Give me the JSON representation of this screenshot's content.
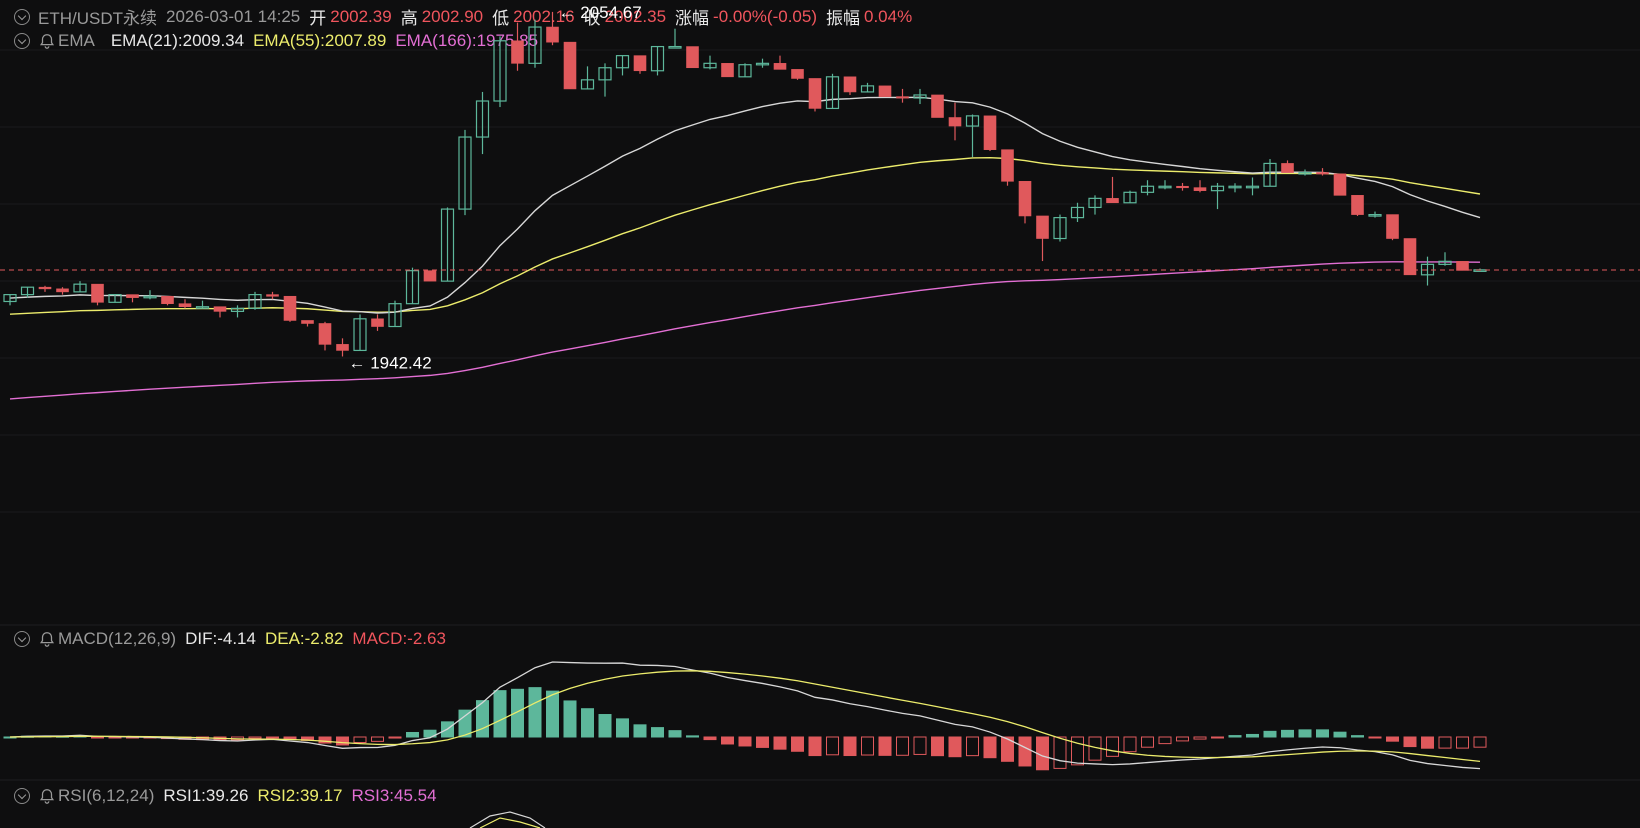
{
  "header": {
    "symbol": "ETH/USDT永续",
    "datetime": "2026-03-01 14:25",
    "open_label": "开",
    "open_value": "2002.39",
    "high_label": "高",
    "high_value": "2002.90",
    "low_label": "低",
    "low_value": "2002.16",
    "close_label": "收",
    "close_value": "2002.35",
    "change_label": "涨幅",
    "change_value": "-0.00%(-0.05)",
    "amp_label": "振幅",
    "amp_value": "0.04%"
  },
  "ema": {
    "name": "EMA",
    "ema21": "EMA(21):2009.34",
    "ema55": "EMA(55):2007.89",
    "ema166": "EMA(166):1975.85"
  },
  "macd": {
    "name": "MACD(12,26,9)",
    "dif": "DIF:-4.14",
    "dea": "DEA:-2.82",
    "macd": "MACD:-2.63"
  },
  "rsi": {
    "name": "RSI(6,12,24)",
    "rsi1": "RSI1:39.26",
    "rsi2": "RSI2:39.17",
    "rsi3": "RSI3:45.54"
  },
  "annotations": {
    "high_mark": "← 2054.67",
    "low_mark": "← 1942.42"
  },
  "colors": {
    "up": "#5db79b",
    "down": "#e0595c",
    "ema21": "#d7d7d7",
    "ema55": "#ecec6c",
    "ema166": "#e36fd4",
    "background": "#0e0e0f"
  },
  "chart_data": {
    "type": "candlestick",
    "ohlc": [
      [
        1990.9,
        1993.4,
        1989.5,
        1993.4
      ],
      [
        1993.4,
        1996.1,
        1992.3,
        1996.1
      ],
      [
        1996.1,
        1996.6,
        1994.4,
        1995.5
      ],
      [
        1995.5,
        1996.1,
        1993.4,
        1994.4
      ],
      [
        1994.4,
        1998.3,
        1994.4,
        1997.2
      ],
      [
        1997.2,
        1997.2,
        1989.5,
        1990.6
      ],
      [
        1990.6,
        1993.4,
        1990.6,
        1993.4
      ],
      [
        1993.4,
        1993.4,
        1990.6,
        1992.3
      ],
      [
        1992.3,
        1995.0,
        1991.7,
        1992.8
      ],
      [
        1992.8,
        1992.8,
        1989.5,
        1990.1
      ],
      [
        1990.1,
        1991.7,
        1988.4,
        1989.0
      ],
      [
        1989.0,
        1991.2,
        1988.4,
        1989.0
      ],
      [
        1989.0,
        1989.0,
        1985.1,
        1987.3
      ],
      [
        1987.3,
        1989.5,
        1985.1,
        1988.4
      ],
      [
        1988.4,
        1994.4,
        1987.9,
        1993.4
      ],
      [
        1993.4,
        1994.4,
        1991.7,
        1992.8
      ],
      [
        1992.8,
        1992.8,
        1983.5,
        1984.0
      ],
      [
        1984.0,
        1984.0,
        1981.8,
        1982.9
      ],
      [
        1982.9,
        1983.5,
        1973.1,
        1975.3
      ],
      [
        1975.3,
        1977.5,
        1970.9,
        1973.1
      ],
      [
        1973.1,
        1986.2,
        1973.1,
        1984.6
      ],
      [
        1984.6,
        1986.2,
        1980.2,
        1981.8
      ],
      [
        1981.8,
        1991.2,
        1981.8,
        1990.1
      ],
      [
        1990.1,
        2003.2,
        1990.1,
        2002.1
      ],
      [
        2002.1,
        2002.1,
        1998.3,
        1998.3
      ],
      [
        1998.3,
        2025.1,
        1998.3,
        2024.5
      ],
      [
        2024.5,
        2053.3,
        2022.3,
        2050.7
      ],
      [
        2050.7,
        2067.1,
        2044.5,
        2063.8
      ],
      [
        2063.8,
        2087.3,
        2061.6,
        2085.7
      ],
      [
        2085.7,
        2092.3,
        2074.8,
        2077.5
      ],
      [
        2077.5,
        2093.4,
        2075.9,
        2090.7
      ],
      [
        2090.7,
        2096.2,
        2084.1,
        2085.2
      ],
      [
        2085.2,
        2085.2,
        2068.2,
        2068.2
      ],
      [
        2068.2,
        2076.4,
        2068.2,
        2071.5
      ],
      [
        2071.5,
        2077.5,
        2065.4,
        2075.9
      ],
      [
        2075.9,
        2080.3,
        2073.1,
        2080.3
      ],
      [
        2080.3,
        2080.3,
        2073.7,
        2074.8
      ],
      [
        2074.8,
        2083.6,
        2073.1,
        2083.6
      ],
      [
        2083.6,
        2090.1,
        2083.6,
        2083.6
      ],
      [
        2083.6,
        2083.6,
        2075.9,
        2075.9
      ],
      [
        2075.9,
        2080.3,
        2075.3,
        2077.5
      ],
      [
        2077.5,
        2077.5,
        2072.6,
        2072.6
      ],
      [
        2072.6,
        2077.5,
        2072.6,
        2077.0
      ],
      [
        2077.0,
        2079.2,
        2075.9,
        2077.5
      ],
      [
        2077.5,
        2080.3,
        2075.3,
        2075.3
      ],
      [
        2075.3,
        2075.3,
        2071.5,
        2072.0
      ],
      [
        2072.0,
        2072.0,
        2060.0,
        2061.1
      ],
      [
        2061.1,
        2073.7,
        2061.1,
        2072.6
      ],
      [
        2072.6,
        2072.6,
        2066.0,
        2067.1
      ],
      [
        2067.1,
        2070.4,
        2067.1,
        2069.3
      ],
      [
        2069.3,
        2069.3,
        2065.4,
        2065.4
      ],
      [
        2065.4,
        2068.2,
        2063.2,
        2064.9
      ],
      [
        2064.9,
        2068.2,
        2062.7,
        2066.0
      ],
      [
        2066.0,
        2066.0,
        2057.8,
        2057.8
      ],
      [
        2057.8,
        2063.2,
        2049.5,
        2054.7
      ],
      [
        2054.7,
        2058.9,
        2043.4,
        2058.4
      ],
      [
        2058.4,
        2058.4,
        2045.6,
        2046.1
      ],
      [
        2046.1,
        2046.1,
        2033.0,
        2034.6
      ],
      [
        2034.6,
        2034.6,
        2019.3,
        2022.0
      ],
      [
        2022.0,
        2022.0,
        2005.6,
        2013.8
      ],
      [
        2013.8,
        2022.5,
        2012.7,
        2021.4
      ],
      [
        2021.4,
        2026.8,
        2019.8,
        2025.1
      ],
      [
        2025.1,
        2029.5,
        2022.5,
        2028.4
      ],
      [
        2028.4,
        2036.2,
        2026.8,
        2026.8
      ],
      [
        2026.8,
        2031.2,
        2026.8,
        2030.6
      ],
      [
        2030.6,
        2035.0,
        2029.5,
        2032.8
      ],
      [
        2032.8,
        2035.0,
        2031.7,
        2032.8
      ],
      [
        2032.8,
        2034.0,
        2031.2,
        2032.3
      ],
      [
        2032.3,
        2035.0,
        2030.6,
        2031.2
      ],
      [
        2031.2,
        2034.0,
        2024.5,
        2032.8
      ],
      [
        2032.8,
        2033.9,
        2030.6,
        2032.8
      ],
      [
        2032.8,
        2036.0,
        2029.5,
        2032.8
      ],
      [
        2032.8,
        2042.7,
        2032.8,
        2041.1
      ],
      [
        2041.1,
        2042.2,
        2037.8,
        2037.8
      ],
      [
        2037.8,
        2038.9,
        2036.7,
        2037.8
      ],
      [
        2037.8,
        2039.4,
        2036.7,
        2037.3
      ],
      [
        2037.3,
        2037.3,
        2029.5,
        2029.5
      ],
      [
        2029.5,
        2029.5,
        2022.0,
        2022.5
      ],
      [
        2022.5,
        2023.6,
        2021.4,
        2022.5
      ],
      [
        2022.5,
        2022.5,
        2013.2,
        2013.8
      ],
      [
        2013.8,
        2013.8,
        2000.6,
        2000.6
      ],
      [
        2000.6,
        2007.2,
        1996.7,
        2004.4
      ],
      [
        2004.4,
        2008.8,
        2003.9,
        2005.5
      ],
      [
        2005.5,
        2005.5,
        2002.2,
        2002.2
      ],
      [
        2002.4,
        2002.9,
        2002.2,
        2002.4
      ]
    ],
    "highest_price": 2054.67,
    "lowest_price": 1942.42,
    "last_price": 2002.35,
    "series": [
      {
        "name": "EMA(21)",
        "last": 2009.34
      },
      {
        "name": "EMA(55)",
        "last": 2007.89
      },
      {
        "name": "EMA(166)",
        "last": 1975.85
      },
      {
        "name": "DIF",
        "last": -4.14
      },
      {
        "name": "DEA",
        "last": -2.82
      },
      {
        "name": "MACD",
        "last": -2.63
      },
      {
        "name": "RSI1",
        "last": 39.26
      },
      {
        "name": "RSI2",
        "last": 39.17
      },
      {
        "name": "RSI3",
        "last": 45.54
      }
    ]
  }
}
